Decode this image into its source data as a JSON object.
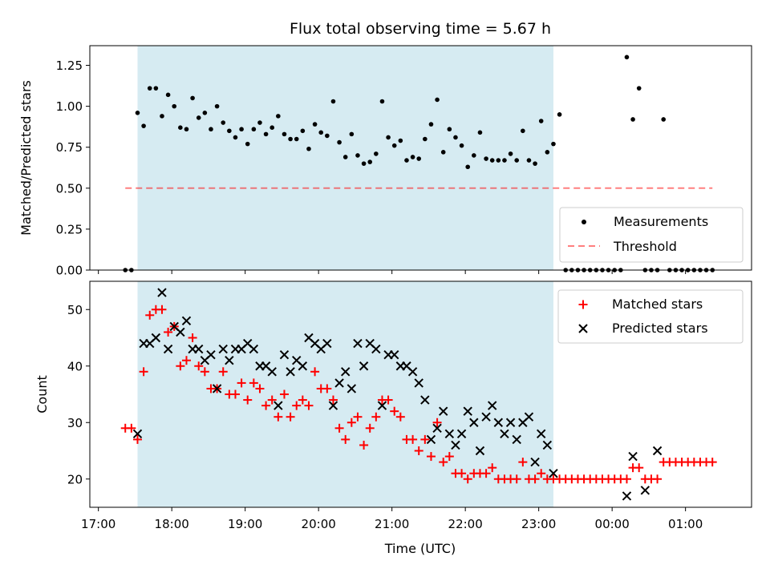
{
  "title": "Flux total observing time = 5.67 h",
  "colors": {
    "shade": "#add8e6",
    "threshold": "#ff0000",
    "matched": "#ff0000",
    "predicted": "#000000",
    "measure": "#000000"
  },
  "chart_data": [
    {
      "type": "scatter",
      "ylabel": "Matched/Predicted stars",
      "ylim": [
        0,
        1.37
      ],
      "yticks": [
        "0.00",
        "0.25",
        "0.50",
        "0.75",
        "1.00",
        "1.25"
      ],
      "shaded_region": [
        "17:32",
        "23:12"
      ],
      "legend": {
        "placement": "lower-right",
        "entries": [
          "Measurements",
          "Threshold"
        ]
      },
      "threshold": {
        "name": "Threshold",
        "value": 0.5,
        "x_range": [
          "17:22",
          "25:22"
        ]
      },
      "series": [
        {
          "name": "Measurements",
          "x": [
            "17:22",
            "17:27",
            "17:32",
            "17:37",
            "17:42",
            "17:47",
            "17:52",
            "17:57",
            "18:02",
            "18:07",
            "18:12",
            "18:17",
            "18:22",
            "18:27",
            "18:32",
            "18:37",
            "18:42",
            "18:47",
            "18:52",
            "18:57",
            "19:02",
            "19:07",
            "19:12",
            "19:17",
            "19:22",
            "19:27",
            "19:32",
            "19:37",
            "19:42",
            "19:47",
            "19:52",
            "19:57",
            "20:02",
            "20:07",
            "20:12",
            "20:17",
            "20:22",
            "20:27",
            "20:32",
            "20:37",
            "20:42",
            "20:47",
            "20:52",
            "20:57",
            "21:02",
            "21:07",
            "21:12",
            "21:17",
            "21:22",
            "21:27",
            "21:32",
            "21:37",
            "21:42",
            "21:47",
            "21:52",
            "21:57",
            "22:02",
            "22:07",
            "22:12",
            "22:17",
            "22:22",
            "22:27",
            "22:32",
            "22:37",
            "22:42",
            "22:47",
            "22:52",
            "22:57",
            "23:02",
            "23:07",
            "23:12",
            "23:17",
            "23:22",
            "23:27",
            "23:32",
            "23:37",
            "23:42",
            "23:47",
            "23:52",
            "23:57",
            "24:02",
            "24:07",
            "24:12",
            "24:17",
            "24:22",
            "24:27",
            "24:32",
            "24:37",
            "24:42",
            "24:47",
            "24:52",
            "24:57",
            "25:02",
            "25:07",
            "25:12",
            "25:17",
            "25:22"
          ],
          "y": [
            0,
            0,
            0.96,
            0.88,
            1.11,
            1.11,
            0.94,
            1.07,
            1.0,
            0.87,
            0.86,
            1.05,
            0.93,
            0.96,
            0.86,
            1.0,
            0.9,
            0.85,
            0.81,
            0.86,
            0.77,
            0.86,
            0.9,
            0.83,
            0.87,
            0.94,
            0.83,
            0.8,
            0.8,
            0.85,
            0.74,
            0.89,
            0.84,
            0.82,
            1.03,
            0.78,
            0.69,
            0.83,
            0.7,
            0.65,
            0.66,
            0.71,
            1.03,
            0.81,
            0.76,
            0.79,
            0.67,
            0.69,
            0.68,
            0.8,
            0.89,
            1.04,
            0.72,
            0.86,
            0.81,
            0.76,
            0.63,
            0.7,
            0.84,
            0.68,
            0.67,
            0.67,
            0.67,
            0.71,
            0.67,
            0.85,
            0.67,
            0.65,
            0.91,
            0.72,
            0.77,
            0.95,
            0,
            0,
            0,
            0,
            0,
            0,
            0,
            0,
            0,
            0,
            1.3,
            0.92,
            1.11,
            0,
            0,
            0,
            0.92,
            0,
            0,
            0,
            0,
            0,
            0,
            0,
            0
          ]
        }
      ]
    },
    {
      "type": "scatter",
      "ylabel": "Count",
      "xlabel": "Time (UTC)",
      "ylim": [
        15,
        55
      ],
      "yticks": [
        "20",
        "30",
        "40",
        "50"
      ],
      "xticks": [
        "17:00",
        "18:00",
        "19:00",
        "20:00",
        "21:00",
        "22:00",
        "23:00",
        "00:00",
        "01:00"
      ],
      "xtick_values": [
        "17:00",
        "18:00",
        "19:00",
        "20:00",
        "21:00",
        "22:00",
        "23:00",
        "24:00",
        "25:00"
      ],
      "x_range": [
        "16:53",
        "25:54"
      ],
      "shaded_region": [
        "17:32",
        "23:12"
      ],
      "legend": {
        "placement": "upper-right",
        "entries": [
          "Matched stars",
          "Predicted stars"
        ]
      },
      "series": [
        {
          "name": "Matched stars",
          "x": [
            "17:22",
            "17:27",
            "17:32",
            "17:37",
            "17:42",
            "17:47",
            "17:52",
            "17:57",
            "18:02",
            "18:07",
            "18:12",
            "18:17",
            "18:22",
            "18:27",
            "18:32",
            "18:37",
            "18:42",
            "18:47",
            "18:52",
            "18:57",
            "19:02",
            "19:07",
            "19:12",
            "19:17",
            "19:22",
            "19:27",
            "19:32",
            "19:37",
            "19:42",
            "19:47",
            "19:52",
            "19:57",
            "20:02",
            "20:07",
            "20:12",
            "20:17",
            "20:22",
            "20:27",
            "20:32",
            "20:37",
            "20:42",
            "20:47",
            "20:52",
            "20:57",
            "21:02",
            "21:07",
            "21:12",
            "21:17",
            "21:22",
            "21:27",
            "21:32",
            "21:37",
            "21:42",
            "21:47",
            "21:52",
            "21:57",
            "22:02",
            "22:07",
            "22:12",
            "22:17",
            "22:22",
            "22:27",
            "22:32",
            "22:37",
            "22:42",
            "22:47",
            "22:52",
            "22:57",
            "23:02",
            "23:07",
            "23:12",
            "23:17",
            "23:22",
            "23:27",
            "23:32",
            "23:37",
            "23:42",
            "23:47",
            "23:52",
            "23:57",
            "24:02",
            "24:07",
            "24:12",
            "24:17",
            "24:22",
            "24:27",
            "24:32",
            "24:37",
            "24:42",
            "24:47",
            "24:52",
            "24:57",
            "25:02",
            "25:07",
            "25:12",
            "25:17",
            "25:22"
          ],
          "y": [
            29,
            29,
            27,
            39,
            49,
            50,
            50,
            46,
            47,
            40,
            41,
            45,
            40,
            39,
            36,
            36,
            39,
            35,
            35,
            37,
            34,
            37,
            36,
            33,
            34,
            31,
            35,
            31,
            33,
            34,
            33,
            39,
            36,
            36,
            34,
            29,
            27,
            30,
            31,
            26,
            29,
            31,
            34,
            34,
            32,
            31,
            27,
            27,
            25,
            27,
            24,
            30,
            23,
            24,
            21,
            21,
            20,
            21,
            21,
            21,
            22,
            20,
            20,
            20,
            20,
            23,
            20,
            20,
            21,
            20,
            20,
            20,
            20,
            20,
            20,
            20,
            20,
            20,
            20,
            20,
            20,
            20,
            20,
            22,
            22,
            20,
            20,
            20,
            23,
            23,
            23,
            23,
            23,
            23,
            23,
            23,
            23
          ]
        },
        {
          "name": "Predicted stars",
          "x": [
            "17:32",
            "17:37",
            "17:42",
            "17:47",
            "17:52",
            "17:57",
            "18:02",
            "18:07",
            "18:12",
            "18:17",
            "18:22",
            "18:27",
            "18:32",
            "18:37",
            "18:42",
            "18:47",
            "18:52",
            "18:57",
            "19:02",
            "19:07",
            "19:12",
            "19:17",
            "19:22",
            "19:27",
            "19:32",
            "19:37",
            "19:42",
            "19:47",
            "19:52",
            "19:57",
            "20:02",
            "20:07",
            "20:12",
            "20:17",
            "20:22",
            "20:27",
            "20:32",
            "20:37",
            "20:42",
            "20:47",
            "20:52",
            "20:57",
            "21:02",
            "21:07",
            "21:12",
            "21:17",
            "21:22",
            "21:27",
            "21:32",
            "21:37",
            "21:42",
            "21:47",
            "21:52",
            "21:57",
            "22:02",
            "22:07",
            "22:12",
            "22:17",
            "22:22",
            "22:27",
            "22:32",
            "22:37",
            "22:42",
            "22:47",
            "22:52",
            "22:57",
            "23:02",
            "23:07",
            "23:12",
            "24:12",
            "24:17",
            "24:27",
            "24:37"
          ],
          "y": [
            28,
            44,
            44,
            45,
            53,
            43,
            47,
            46,
            48,
            43,
            43,
            41,
            42,
            36,
            43,
            41,
            43,
            43,
            44,
            43,
            40,
            40,
            39,
            33,
            42,
            39,
            41,
            40,
            45,
            44,
            43,
            44,
            33,
            37,
            39,
            36,
            44,
            40,
            44,
            43,
            33,
            42,
            42,
            40,
            40,
            39,
            37,
            34,
            27,
            29,
            32,
            28,
            26,
            28,
            32,
            30,
            25,
            31,
            33,
            30,
            28,
            30,
            27,
            30,
            31,
            23,
            28,
            26,
            21,
            17,
            24,
            18,
            25
          ]
        }
      ]
    }
  ]
}
